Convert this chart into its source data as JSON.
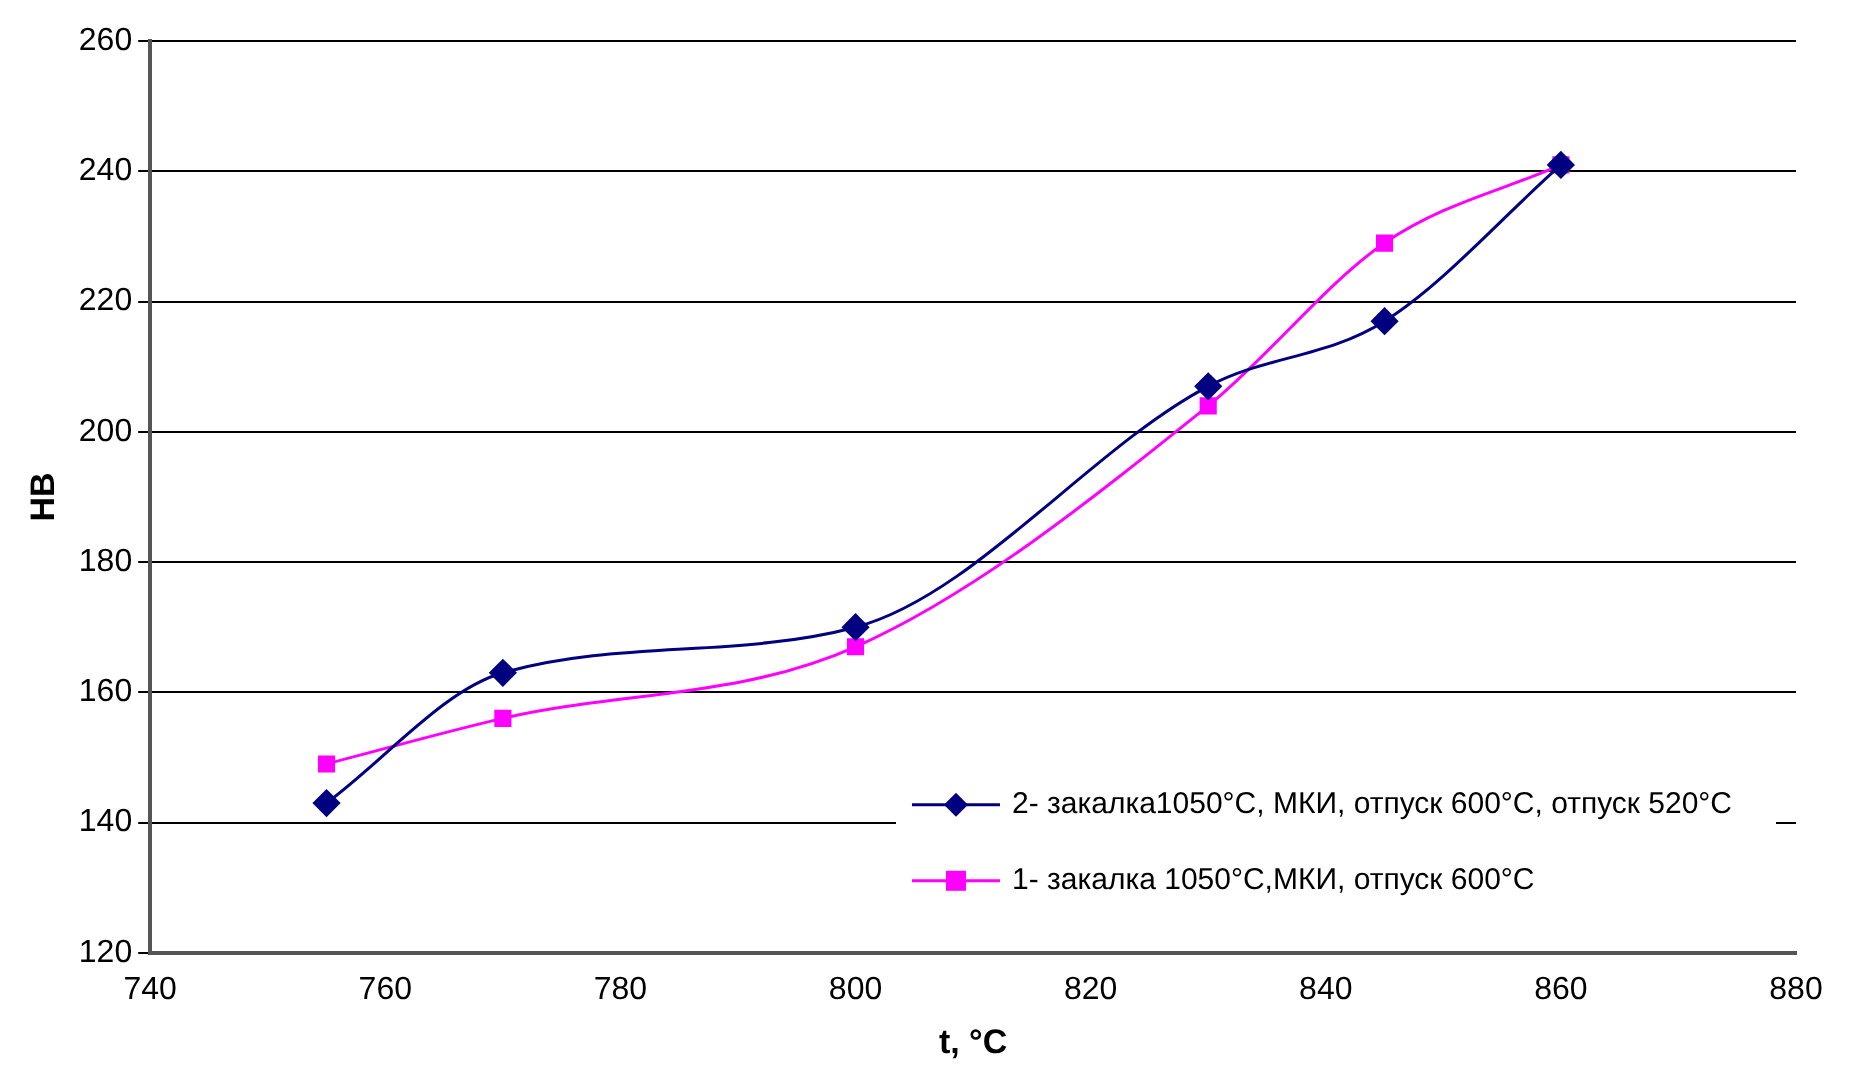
{
  "chart_data": {
    "type": "line",
    "xlabel": "t, °C",
    "ylabel": "НВ",
    "xlim": [
      740,
      880
    ],
    "xticks": [
      740,
      760,
      780,
      800,
      820,
      840,
      860,
      880
    ],
    "ylim": [
      120,
      260
    ],
    "yticks": [
      120,
      140,
      160,
      180,
      200,
      220,
      240,
      260
    ],
    "grid": "y",
    "legend": "bottom right",
    "series": [
      {
        "name": "2- закалка1050°C, МКИ, отпуск 600°C, отпуск 520°C",
        "color": "#000080",
        "marker": "diamond",
        "x": [
          755,
          770,
          800,
          830,
          845,
          860
        ],
        "values": [
          143,
          163,
          170,
          207,
          217,
          241
        ]
      },
      {
        "name": "1- закалка 1050°C,МКИ, отпуск 600°C",
        "color": "#ff00ff",
        "marker": "square",
        "x": [
          755,
          770,
          800,
          830,
          845,
          860
        ],
        "values": [
          149,
          156,
          167,
          204,
          229,
          241
        ]
      }
    ]
  }
}
